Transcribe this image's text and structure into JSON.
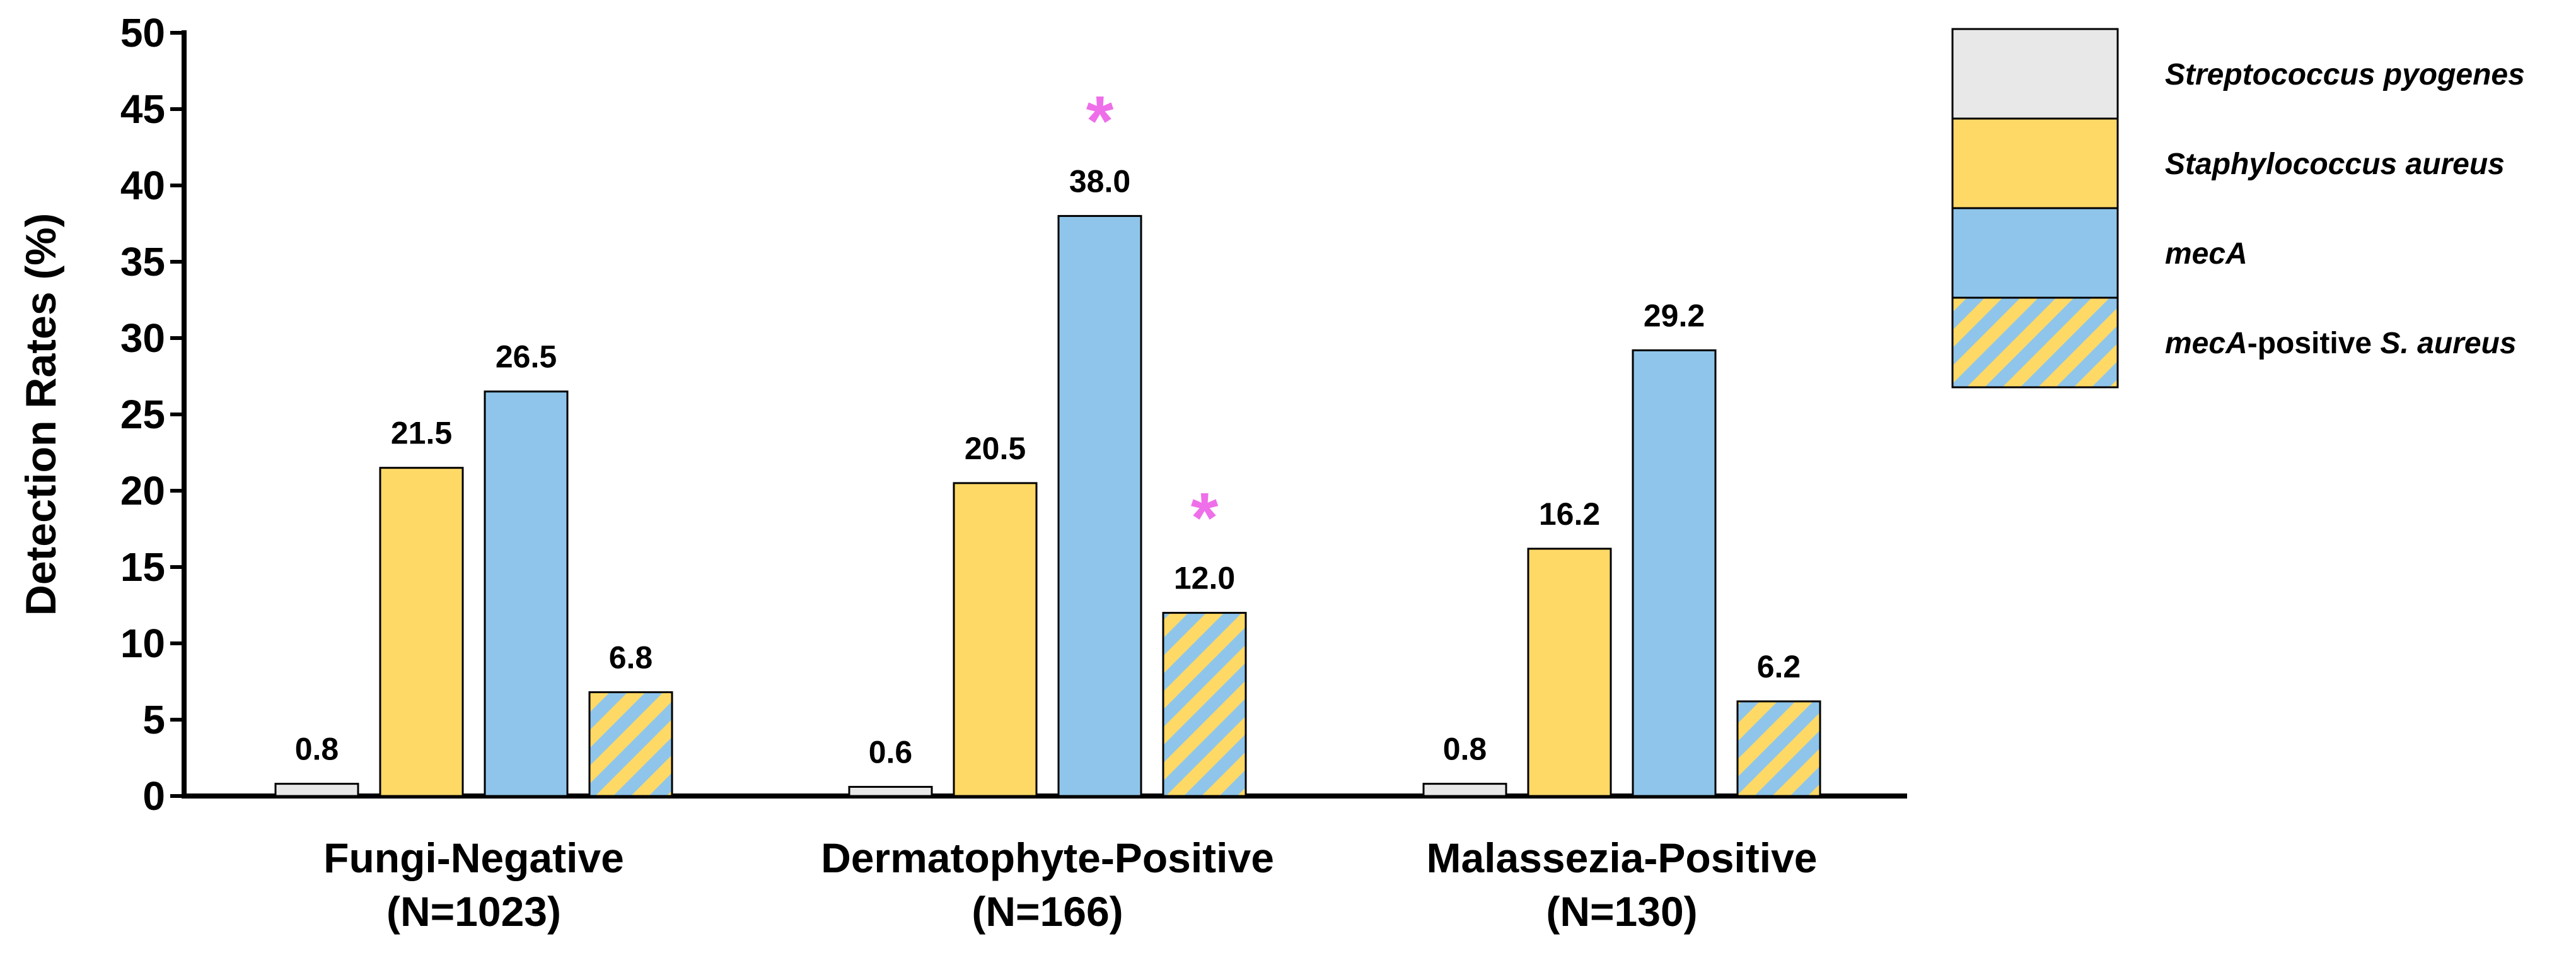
{
  "chart_data": {
    "type": "bar",
    "title": "",
    "xlabel": "",
    "ylabel": "Detection Rates (%)",
    "ylim": [
      0,
      50
    ],
    "yticks": [
      0,
      5,
      10,
      15,
      20,
      25,
      30,
      35,
      40,
      45,
      50
    ],
    "grid": false,
    "legend_position": "top-right",
    "categories": [
      {
        "line1": "Fungi-Negative",
        "line2": "(N=1023)"
      },
      {
        "line1": "Dermatophyte-Positive",
        "line2": "(N=166)"
      },
      {
        "line1": "Malassezia-Positive",
        "line2": "(N=130)"
      }
    ],
    "series": [
      {
        "name": "Streptococcus pyogenes",
        "name_parts": [
          {
            "text": "Streptococcus pyogenes",
            "italic": true
          }
        ],
        "color": "#e8e8e8",
        "pattern": "solid",
        "values": [
          0.8,
          0.6,
          0.8
        ],
        "labels": [
          "0.8",
          "0.6",
          "0.8"
        ]
      },
      {
        "name": "Staphylococcus aureus",
        "name_parts": [
          {
            "text": "Staphylococcus aureus",
            "italic": true
          }
        ],
        "color": "#ffd966",
        "pattern": "solid",
        "values": [
          21.5,
          20.5,
          16.2
        ],
        "labels": [
          "21.5",
          "20.5",
          "16.2"
        ]
      },
      {
        "name": "mecA",
        "name_parts": [
          {
            "text": "mecA",
            "italic": true
          }
        ],
        "color": "#8fc5ea",
        "pattern": "solid",
        "values": [
          26.5,
          38.0,
          29.2
        ],
        "labels": [
          "26.5",
          "38.0",
          "29.2"
        ]
      },
      {
        "name": "mecA-positive S. aureus",
        "name_parts": [
          {
            "text": "mecA",
            "italic": true
          },
          {
            "text": "-positive ",
            "italic": false
          },
          {
            "text": "S. aureus",
            "italic": true
          }
        ],
        "color": "#8fc5ea",
        "stripe_color": "#ffd966",
        "pattern": "diagonal-stripes",
        "values": [
          6.8,
          12.0,
          6.2
        ],
        "labels": [
          "6.8",
          "12.0",
          "6.2"
        ]
      }
    ],
    "annotations": [
      {
        "text": "*",
        "category_index": 1,
        "series_index": 2,
        "color": "#ee6fe9",
        "meaning": "significance marker"
      },
      {
        "text": "*",
        "category_index": 1,
        "series_index": 3,
        "color": "#ee6fe9",
        "meaning": "significance marker"
      }
    ]
  }
}
